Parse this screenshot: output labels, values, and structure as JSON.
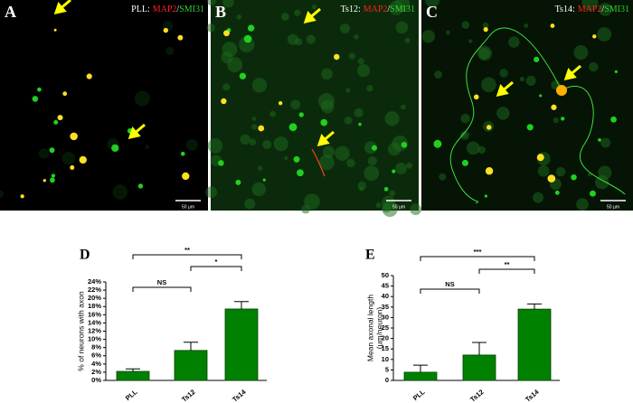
{
  "panels": [
    {
      "letter": "A",
      "parts": [
        {
          "text": "PLL:",
          "color": "#ffffff"
        },
        {
          "text": "MAP2",
          "color": "#ff2020"
        },
        {
          "text": "/",
          "color": "#ffffff"
        },
        {
          "text": "SMI31",
          "color": "#30d030"
        }
      ],
      "scale": "50 µm"
    },
    {
      "letter": "B",
      "parts": [
        {
          "text": "Ts12:",
          "color": "#ffffff"
        },
        {
          "text": "MAP2",
          "color": "#ff2020"
        },
        {
          "text": "/",
          "color": "#ffffff"
        },
        {
          "text": "SMI31",
          "color": "#30d030"
        }
      ],
      "scale": "50 µm"
    },
    {
      "letter": "C",
      "parts": [
        {
          "text": "Ts14:",
          "color": "#ffffff"
        },
        {
          "text": "MAP2",
          "color": "#ff2020"
        },
        {
          "text": "/",
          "color": "#ffffff"
        },
        {
          "text": "SMI31",
          "color": "#30d030"
        }
      ],
      "scale": "50 µm"
    }
  ],
  "chart_data": [
    {
      "type": "bar",
      "panel": "D",
      "ylabel": [
        "% of neurons with axon"
      ],
      "categories": [
        "PLL",
        "Ts12",
        "Ts14"
      ],
      "values": [
        2.2,
        7.3,
        17.4
      ],
      "errors": [
        0.6,
        2.0,
        1.8
      ],
      "color": "#008000",
      "ylim": [
        0,
        24
      ],
      "yticks": [
        {
          "value": 0,
          "label": "0%"
        },
        {
          "value": 2,
          "label": "2%"
        },
        {
          "value": 4,
          "label": "4%"
        },
        {
          "value": 6,
          "label": "6%"
        },
        {
          "value": 8,
          "label": "8%"
        },
        {
          "value": 10,
          "label": "10%"
        },
        {
          "value": 12,
          "label": "12%"
        },
        {
          "value": 14,
          "label": "14%"
        },
        {
          "value": 16,
          "label": "16%"
        },
        {
          "value": 18,
          "label": "18%"
        },
        {
          "value": 20,
          "label": "20%"
        },
        {
          "value": 22,
          "label": "22%"
        },
        {
          "value": 24,
          "label": "24%"
        }
      ],
      "annotations": [
        {
          "text": "**",
          "between": [
            "PLL",
            "Ts14"
          ]
        },
        {
          "text": "*",
          "between": [
            "Ts12",
            "Ts14"
          ]
        },
        {
          "text": "NS",
          "between": [
            "PLL",
            "Ts12"
          ]
        }
      ]
    },
    {
      "type": "bar",
      "panel": "E",
      "ylabel": [
        "Mean axonal length",
        "(µm/neuron)"
      ],
      "categories": [
        "PLL",
        "Ts12",
        "Ts14"
      ],
      "values": [
        3.9,
        12.1,
        34
      ],
      "errors": [
        3.4,
        6,
        2.5
      ],
      "color": "#008000",
      "ylim": [
        0,
        50
      ],
      "yticks": [
        0,
        5,
        10,
        15,
        20,
        25,
        30,
        35,
        40,
        45,
        50
      ],
      "annotations": [
        {
          "text": "***",
          "between": [
            "PLL",
            "Ts14"
          ]
        },
        {
          "text": "**",
          "between": [
            "Ts12",
            "Ts14"
          ]
        },
        {
          "text": "NS",
          "between": [
            "PLL",
            "Ts12"
          ]
        }
      ]
    }
  ]
}
